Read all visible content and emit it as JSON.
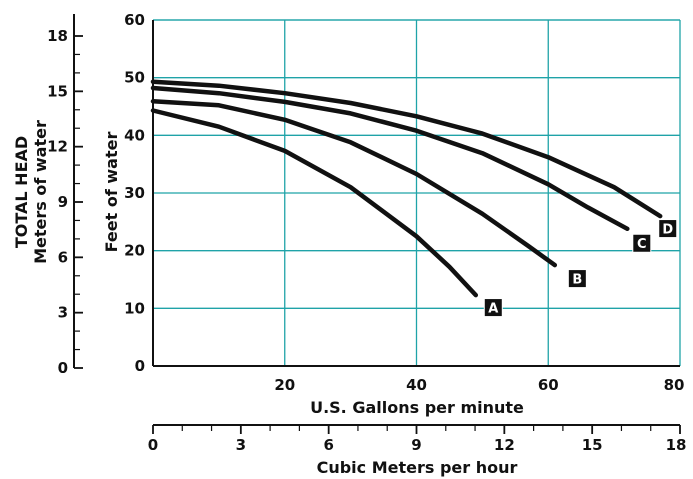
{
  "chart_data": {
    "type": "line",
    "xlabel": "U.S. Gallons per minute",
    "ylabel": "Feet of water",
    "xlim": [
      0,
      80
    ],
    "ylim": [
      0,
      60
    ],
    "x_ticks": [
      20,
      40,
      60,
      80
    ],
    "y_ticks": [
      0,
      10,
      20,
      30,
      40,
      50,
      60
    ],
    "grid": true,
    "secondary_x_axis": {
      "label": "Cubic Meters per hour",
      "lim": [
        0,
        18
      ],
      "ticks": [
        0,
        3,
        6,
        9,
        12,
        15,
        18
      ]
    },
    "secondary_y_axis": {
      "label_line1": "TOTAL HEAD",
      "label_line2": "Meters of water",
      "lim": [
        0,
        18
      ],
      "ticks": [
        0,
        3,
        6,
        9,
        12,
        15,
        18
      ]
    },
    "series": [
      {
        "name": "A",
        "x": [
          0,
          10,
          20,
          30,
          40,
          45,
          49
        ],
        "y": [
          44.3,
          41.5,
          37.3,
          31.0,
          22.5,
          17.2,
          12.3
        ]
      },
      {
        "name": "B",
        "x": [
          0,
          10,
          20,
          30,
          40,
          50,
          57,
          61
        ],
        "y": [
          45.9,
          45.2,
          42.7,
          38.8,
          33.3,
          26.4,
          20.8,
          17.5
        ]
      },
      {
        "name": "C",
        "x": [
          0,
          10,
          20,
          30,
          40,
          50,
          60,
          66,
          72
        ],
        "y": [
          48.2,
          47.3,
          45.8,
          43.8,
          40.8,
          36.9,
          31.5,
          27.5,
          23.8
        ]
      },
      {
        "name": "D",
        "x": [
          0,
          10,
          20,
          30,
          40,
          50,
          60,
          70,
          77
        ],
        "y": [
          49.3,
          48.6,
          47.3,
          45.6,
          43.3,
          40.3,
          36.2,
          31.0,
          26.0
        ]
      }
    ]
  }
}
